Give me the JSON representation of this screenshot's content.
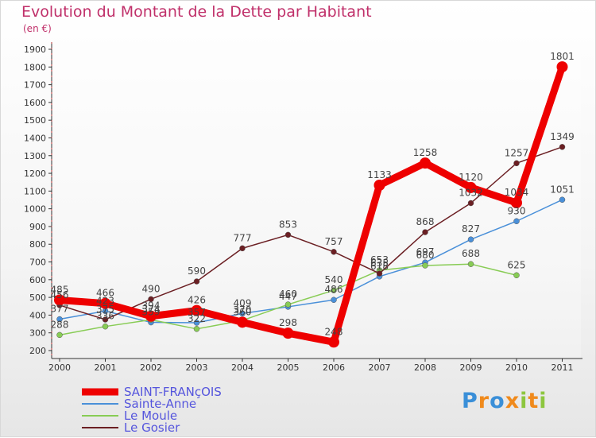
{
  "chart_data": {
    "type": "line",
    "title": "Evolution du Montant de la Dette par Habitant",
    "subtitle": "(en €)",
    "categories": [
      "2000",
      "2001",
      "2002",
      "2003",
      "2004",
      "2005",
      "2006",
      "2007",
      "2008",
      "2009",
      "2010",
      "2011"
    ],
    "ylim": [
      200,
      1900
    ],
    "yticks": [
      200,
      300,
      400,
      500,
      600,
      700,
      800,
      900,
      1000,
      1100,
      1200,
      1300,
      1400,
      1500,
      1600,
      1700,
      1800,
      1900
    ],
    "grid": false,
    "legend_position": "bottom-left",
    "series": [
      {
        "name": "SAINT-FRANçOIS",
        "color": "#ee0000",
        "values": [
          485,
          466,
          394,
          426,
          360,
          298,
          248,
          1133,
          1258,
          1120,
          1034,
          1801
        ]
      },
      {
        "name": "Sainte-Anne",
        "color": "#4a90d9",
        "values": [
          377,
          423,
          359,
          357,
          409,
          447,
          486,
          618,
          697,
          827,
          930,
          1051
        ]
      },
      {
        "name": "Le Moule",
        "color": "#88cc55",
        "values": [
          288,
          336,
          374,
          322,
          370,
          460,
          540,
          653,
          680,
          688,
          625,
          null
        ]
      },
      {
        "name": "Le Gosier",
        "color": "#6b1f23",
        "values": [
          456,
          375,
          490,
          590,
          777,
          853,
          757,
          635,
          868,
          1032,
          1257,
          1349
        ]
      }
    ]
  },
  "branding": {
    "letters": [
      "P",
      "r",
      "o",
      "x",
      "i",
      "t",
      "i"
    ],
    "colors": [
      "#3a8fd8",
      "#f08a1c",
      "#3a8fd8",
      "#f08a1c",
      "#8dc63f",
      "#f08a1c",
      "#8dc63f"
    ]
  }
}
